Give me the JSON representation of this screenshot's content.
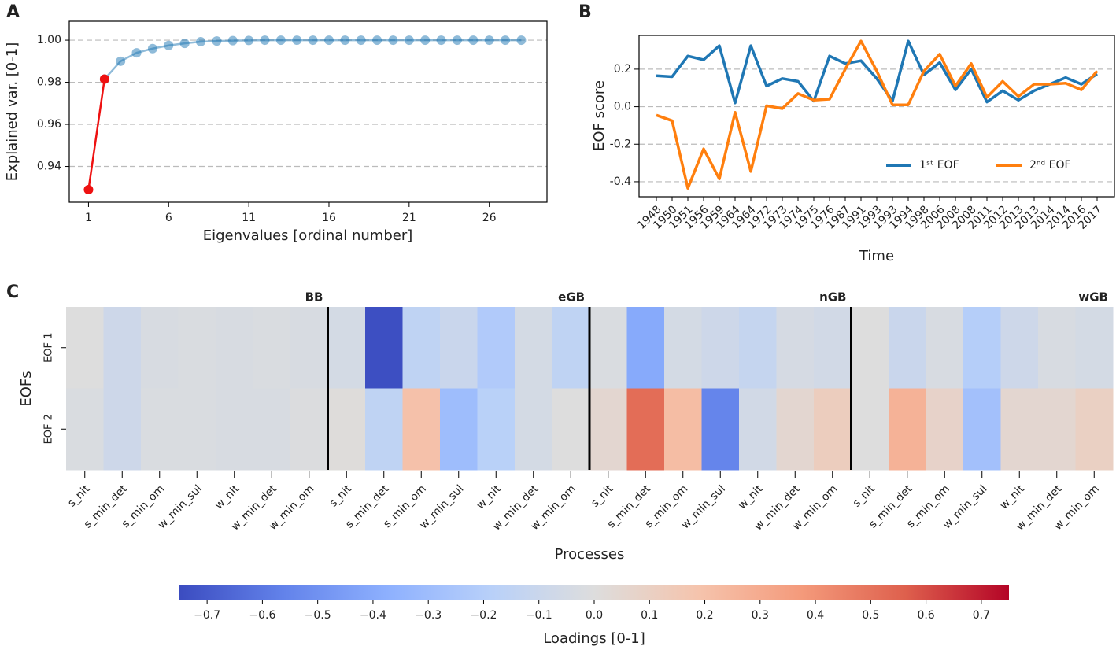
{
  "chart_data": [
    {
      "type": "line",
      "label": "A",
      "xlabel": "Eigenvalues [ordinal number]",
      "ylabel": "Explained var. [0-1]",
      "x": [
        1,
        2,
        3,
        4,
        5,
        6,
        7,
        8,
        9,
        10,
        11,
        12,
        13,
        14,
        15,
        16,
        17,
        18,
        19,
        20,
        21,
        22,
        23,
        24,
        25,
        26,
        27,
        28
      ],
      "xlim": [
        -0.2,
        29.6
      ],
      "xticks": [
        1,
        6,
        11,
        16,
        21,
        26
      ],
      "ylim": [
        0.923,
        1.009
      ],
      "yticks": [
        0.94,
        0.96,
        0.98,
        {
          "value": 1,
          "label": "1.00"
        }
      ],
      "grid": true,
      "markers": true,
      "series": [
        {
          "color": "#1f77b4",
          "alpha": 0.5,
          "values": [
            null,
            0.9815,
            0.99,
            0.994,
            0.996,
            0.9975,
            0.9985,
            0.9993,
            0.9996,
            0.9998,
            0.9999,
            1,
            1,
            1,
            1,
            1,
            1,
            1,
            1,
            1,
            1,
            1,
            1,
            1,
            1,
            1,
            1,
            1
          ]
        },
        {
          "color": "#ee1111",
          "values": [
            0.929,
            0.9815,
            null,
            null,
            null,
            null,
            null,
            null,
            null,
            null,
            null,
            null,
            null,
            null,
            null,
            null,
            null,
            null,
            null,
            null,
            null,
            null,
            null,
            null,
            null,
            null,
            null,
            null
          ]
        }
      ]
    },
    {
      "type": "line",
      "label": "B",
      "xlabel": "Time",
      "ylabel": "EOF score",
      "categories": [
        "1948",
        "1950",
        "1951",
        "1956",
        "1959",
        "1964",
        "1964",
        "1972",
        "1973",
        "1974",
        "1975",
        "1976",
        "1987",
        "1991",
        "1993",
        "1993",
        "1994",
        "1998",
        "2006",
        "2008",
        "2008",
        "2011",
        "2012",
        "2013",
        "2013",
        "2014",
        "2014",
        "2016",
        "2017"
      ],
      "ylim": [
        -0.48,
        0.38
      ],
      "yticks": [
        -0.4,
        -0.2,
        {
          "value": 0,
          "label": "0.0"
        },
        0.2
      ],
      "grid": true,
      "legend": "lower right",
      "series": [
        {
          "name": "1ˢᵗ EOF",
          "color": "#1f77b4",
          "values": [
            0.165,
            0.16,
            0.27,
            0.25,
            0.325,
            0.02,
            0.325,
            0.11,
            0.15,
            0.135,
            0.03,
            0.27,
            0.23,
            0.245,
            0.15,
            0.03,
            0.35,
            0.17,
            0.235,
            0.09,
            0.2,
            0.025,
            0.085,
            0.035,
            0.085,
            0.12,
            0.155,
            0.12,
            0.175
          ]
        },
        {
          "name": "2ⁿᵈ EOF",
          "color": "#ff7f0e",
          "values": [
            -0.045,
            -0.075,
            -0.435,
            -0.225,
            -0.385,
            -0.03,
            -0.345,
            0.005,
            -0.01,
            0.07,
            0.035,
            0.04,
            0.2,
            0.35,
            0.19,
            0.01,
            0.01,
            0.19,
            0.28,
            0.11,
            0.23,
            0.05,
            0.135,
            0.055,
            0.12,
            0.12,
            0.125,
            0.09,
            0.19
          ]
        }
      ]
    },
    {
      "type": "heatmap",
      "label": "C",
      "xlabel": "Processes",
      "ylabel": "EOFs",
      "colorbar_label": "Loadings [0-1]",
      "rows": [
        "EOF 1",
        "EOF 2"
      ],
      "groups": [
        "BB",
        "eGB",
        "nGB",
        "wGB"
      ],
      "columns": [
        "s_nit",
        "s_min_det",
        "s_min_om",
        "w_min_sul",
        "w_nit",
        "w_min_det",
        "w_min_om",
        "s_nit",
        "s_min_det",
        "s_min_om",
        "w_min_sul",
        "w_nit",
        "w_min_det",
        "w_min_om",
        "s_nit",
        "s_min_det",
        "s_min_om",
        "w_min_sul",
        "w_nit",
        "w_min_det",
        "w_min_om",
        "s_nit",
        "s_min_det",
        "s_min_om",
        "w_min_sul",
        "w_nit",
        "w_min_det",
        "w_min_om"
      ],
      "values": [
        [
          0.0,
          -0.08,
          -0.03,
          -0.02,
          -0.03,
          -0.02,
          -0.03,
          -0.05,
          -0.74,
          -0.15,
          -0.1,
          -0.22,
          -0.05,
          -0.15,
          -0.02,
          -0.4,
          -0.05,
          -0.08,
          -0.12,
          -0.04,
          -0.06,
          0.0,
          -0.1,
          -0.03,
          -0.2,
          -0.08,
          -0.03,
          -0.05
        ],
        [
          -0.02,
          -0.08,
          -0.02,
          -0.02,
          -0.03,
          -0.03,
          -0.01,
          0.01,
          -0.15,
          0.2,
          -0.3,
          -0.18,
          -0.05,
          0.0,
          0.05,
          0.52,
          0.22,
          -0.55,
          -0.06,
          0.05,
          0.12,
          0.0,
          0.27,
          0.08,
          -0.28,
          0.05,
          0.05,
          0.1
        ]
      ],
      "clim": [
        -0.75,
        0.75
      ],
      "colormap": "coolwarm",
      "colorbar_ticks": [
        {
          "value": -0.7,
          "label": "−0.7"
        },
        {
          "value": -0.6,
          "label": "−0.6"
        },
        {
          "value": -0.5,
          "label": "−0.5"
        },
        {
          "value": -0.4,
          "label": "−0.4"
        },
        {
          "value": -0.3,
          "label": "−0.3"
        },
        {
          "value": -0.2,
          "label": "−0.2"
        },
        {
          "value": -0.1,
          "label": "−0.1"
        },
        {
          "value": 0,
          "label": "0.0"
        },
        0.1,
        0.2,
        0.3,
        0.4,
        0.5,
        0.6,
        0.7
      ]
    }
  ]
}
